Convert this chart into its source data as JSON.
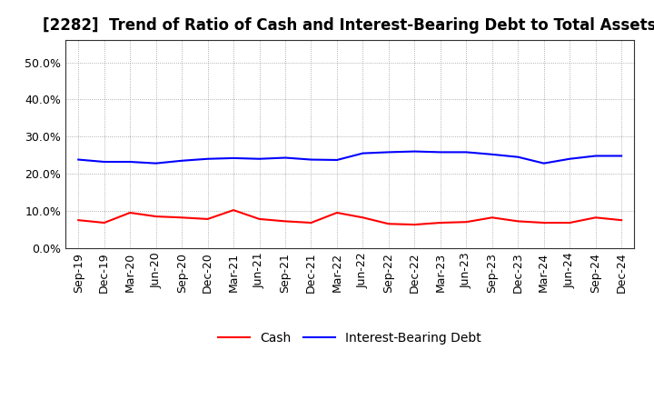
{
  "title": "[2282]  Trend of Ratio of Cash and Interest-Bearing Debt to Total Assets",
  "x_labels": [
    "Sep-19",
    "Dec-19",
    "Mar-20",
    "Jun-20",
    "Sep-20",
    "Dec-20",
    "Mar-21",
    "Jun-21",
    "Sep-21",
    "Dec-21",
    "Mar-22",
    "Jun-22",
    "Sep-22",
    "Dec-22",
    "Mar-23",
    "Jun-23",
    "Sep-23",
    "Dec-23",
    "Mar-24",
    "Jun-24",
    "Sep-24",
    "Dec-24"
  ],
  "cash": [
    0.075,
    0.068,
    0.095,
    0.085,
    0.082,
    0.078,
    0.102,
    0.078,
    0.072,
    0.068,
    0.095,
    0.082,
    0.065,
    0.063,
    0.068,
    0.07,
    0.082,
    0.072,
    0.068,
    0.068,
    0.082,
    0.075
  ],
  "ibd": [
    0.238,
    0.232,
    0.232,
    0.228,
    0.235,
    0.24,
    0.242,
    0.24,
    0.243,
    0.238,
    0.237,
    0.255,
    0.258,
    0.26,
    0.258,
    0.258,
    0.252,
    0.245,
    0.228,
    0.24,
    0.248,
    0.248
  ],
  "cash_color": "#ff0000",
  "ibd_color": "#0000ff",
  "ylim": [
    0.0,
    0.56
  ],
  "yticks": [
    0.0,
    0.1,
    0.2,
    0.3,
    0.4,
    0.5
  ],
  "legend_cash": "Cash",
  "legend_ibd": "Interest-Bearing Debt",
  "background_color": "#ffffff",
  "plot_bg_color": "#ffffff",
  "grid_color": "#999999",
  "linewidth": 1.5,
  "title_fontsize": 12,
  "legend_fontsize": 10,
  "tick_fontsize": 9,
  "spine_color": "#333333"
}
